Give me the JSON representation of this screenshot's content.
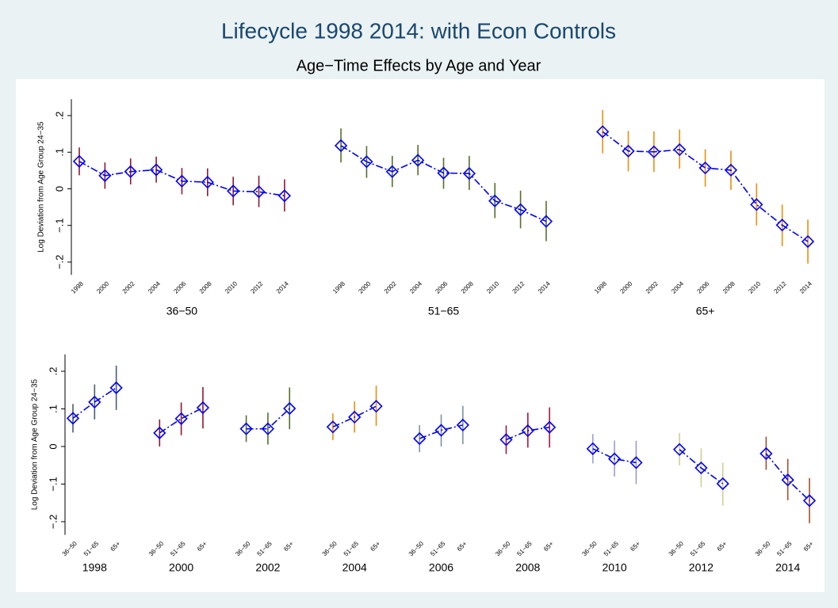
{
  "chart_data": {
    "type": "errorbar",
    "title": "Lifecycle 1998 2014: with Econ Controls",
    "subtitle": "Age−Time Effects by Age and Year",
    "y_label": "Log Deviation from Age Group 24−35",
    "years": [
      "1998",
      "2000",
      "2002",
      "2004",
      "2006",
      "2008",
      "2010",
      "2012",
      "2014"
    ],
    "year_colors": [
      "#4a5d70",
      "#8b1a2e",
      "#55702c",
      "#e8900c",
      "#7d93a3",
      "#a3173e",
      "#9c9cd0",
      "#cfcf95",
      "#a0522d"
    ],
    "series": [
      {
        "name": "36−50",
        "color": "#8b1a2e",
        "values": [
          0.075,
          0.036,
          0.047,
          0.052,
          0.021,
          0.018,
          -0.006,
          -0.008,
          -0.019
        ],
        "lower": [
          0.037,
          0.0,
          0.012,
          0.017,
          -0.015,
          -0.02,
          -0.045,
          -0.05,
          -0.062
        ],
        "upper": [
          0.113,
          0.072,
          0.083,
          0.088,
          0.057,
          0.056,
          0.033,
          0.036,
          0.026
        ]
      },
      {
        "name": "51−65",
        "color": "#55702c",
        "values": [
          0.118,
          0.074,
          0.047,
          0.078,
          0.043,
          0.042,
          -0.033,
          -0.057,
          -0.089
        ],
        "lower": [
          0.072,
          0.03,
          0.005,
          0.037,
          0.0,
          -0.003,
          -0.08,
          -0.108,
          -0.143
        ],
        "upper": [
          0.165,
          0.117,
          0.09,
          0.12,
          0.085,
          0.09,
          0.016,
          -0.005,
          -0.033
        ]
      },
      {
        "name": "65+",
        "color": "#e8900c",
        "values": [
          0.156,
          0.103,
          0.101,
          0.107,
          0.057,
          0.051,
          -0.043,
          -0.099,
          -0.144
        ],
        "lower": [
          0.097,
          0.048,
          0.046,
          0.055,
          0.006,
          -0.003,
          -0.1,
          -0.157,
          -0.204
        ],
        "upper": [
          0.215,
          0.158,
          0.157,
          0.162,
          0.108,
          0.104,
          0.015,
          -0.043,
          -0.084
        ]
      }
    ],
    "line_color": "#0000ff",
    "ylim": [
      -0.235,
      0.245
    ],
    "yticks": [
      {
        "value": -0.2,
        "label": "−.2"
      },
      {
        "value": -0.1,
        "label": "−.1"
      },
      0,
      {
        "value": 0.1,
        "label": ".1"
      },
      {
        "value": 0.2,
        "label": ".2"
      }
    ]
  }
}
